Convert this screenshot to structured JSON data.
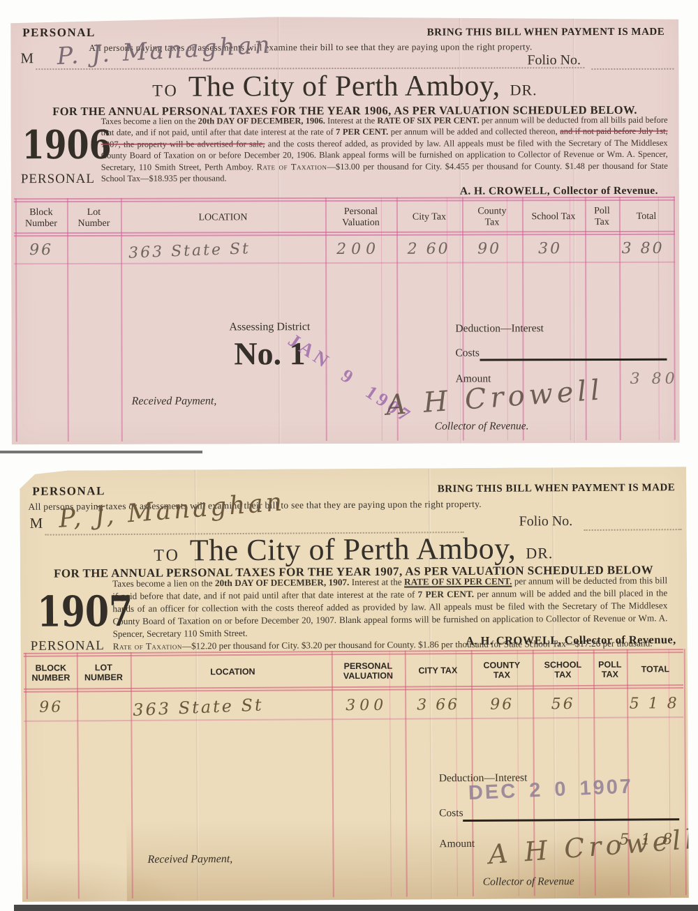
{
  "bill_1906": {
    "personal_label": "PERSONAL",
    "bring_notice": "BRING THIS BILL WHEN PAYMENT IS MADE",
    "examine_notice": "All persons paying taxes or assessments will examine their bill to see that they are paying upon the right property.",
    "m_label": "M",
    "written_name": "P. J. Managhan",
    "folio_label": "Folio No.",
    "title_to": "TO",
    "title_city": "The City of Perth Amboy,",
    "title_dr": "DR.",
    "subtitle": "FOR THE ANNUAL PERSONAL TAXES FOR THE YEAR 1906, AS PER VALUATION SCHEDULED BELOW.",
    "year": "1906",
    "year_label": "PERSONAL",
    "body_segments": [
      {
        "t": "Taxes become a lien on the ",
        "s": ""
      },
      {
        "t": "20th DAY OF DECEMBER, 1906.",
        "s": "b"
      },
      {
        "t": "  Interest at the ",
        "s": ""
      },
      {
        "t": "RATE OF SIX PER CENT.",
        "s": "b"
      },
      {
        "t": " per annum will be deducted from all bills paid before that date, and if not paid, until after that date interest at the rate of ",
        "s": ""
      },
      {
        "t": "7 PER CENT.",
        "s": "b"
      },
      {
        "t": " per annum will be added and collected thereon, ",
        "s": ""
      },
      {
        "t": "and if not paid before July 1st, 1907, the property will be advertised for sale,",
        "s": "x"
      },
      {
        "t": " and the costs thereof added, as provided by law.  All appeals must be filed with the Secretary of The Middlesex County Board of Taxation on or before December 20, 1906.  Blank appeal forms will be furnished on application to Collector of Revenue or Wm. A. Spencer, Secretary, 110 Smith Street, Perth Amboy.  ",
        "s": ""
      },
      {
        "t": "Rate of Taxation",
        "s": "sc"
      },
      {
        "t": "—$13.00 per thousand for City.  $4.455 per thousand for County.  $1.48 per thousand for State School Tax—$18.935 per thousand.",
        "s": ""
      }
    ],
    "collector_line": "A. H. CROWELL, Collector of Revenue.",
    "table": {
      "headers": [
        "Block\nNumber",
        "Lot\nNumber",
        "LOCATION",
        "Personal\nValuation",
        "City Tax",
        "County\nTax",
        "School Tax",
        "Poll\nTax",
        "Total"
      ],
      "row": {
        "block": "96",
        "lot": "",
        "location": "363  State St",
        "valuation": "200",
        "city_tax": "2 60",
        "county_tax": "90",
        "school_tax": "30",
        "poll_tax": "",
        "total": "3 80"
      }
    },
    "assessing_district_label": "Assessing District",
    "district_number": "No. 1",
    "stamp": "JAN 9 1907",
    "received_payment": "Received Payment,",
    "deduction_label": "Deduction—Interest",
    "costs_label": "Costs",
    "amount_label": "Amount",
    "amount_value": "3 80",
    "signature": "A H Crowell",
    "collector_sign_label": "Collector of Revenue."
  },
  "bill_1907": {
    "personal_label": "PERSONAL",
    "bring_notice": "BRING THIS BILL WHEN PAYMENT IS MADE",
    "examine_notice": "All persons paying taxes or assessments will examine their bill to see that they are paying upon the right property.",
    "m_label": "M",
    "written_name": "P, J, Managhan",
    "folio_label": "Folio No.",
    "title_to": "TO",
    "title_city": "The City of Perth Amboy,",
    "title_dr": "DR.",
    "subtitle": "FOR THE ANNUAL PERSONAL TAXES FOR THE YEAR 1907, AS PER VALUATION SCHEDULED BELOW",
    "year": "1907",
    "year_label": "PERSONAL",
    "body_segments": [
      {
        "t": "Taxes become a lien on the ",
        "s": ""
      },
      {
        "t": "20th DAY OF DECEMBER, 1907.",
        "s": "b"
      },
      {
        "t": "  Interest at the ",
        "s": ""
      },
      {
        "t": "RATE OF SIX PER CENT.",
        "s": "bu"
      },
      {
        "t": " per annum will be deducted from this bill if paid before that date, and if not paid until after that date interest at the rate of ",
        "s": ""
      },
      {
        "t": "7 PER CENT.",
        "s": "b"
      },
      {
        "t": " per annum will be added and the bill placed in the hands of an officer for collection with the costs thereof added as provided by law.  All appeals must be filed with the Secretary of The Middlesex County Board of Taxation on or before December 20, 1907.  Blank appeal forms will be furnished on application to Collector of Revenue or Wm. A. Spencer, Secretary 110 Smith Street.",
        "s": ""
      },
      {
        "t": "",
        "s": "nl"
      },
      {
        "t": "Rate of Taxation",
        "s": "sc"
      },
      {
        "t": "—$12.20 per thousand for City.  $3.20 per thousand for County.  $1.86 per thousand for State School Tax—$17.26 per thousand.",
        "s": ""
      }
    ],
    "collector_line": "A. H. CROWELL, Collector of Revenue,",
    "table": {
      "headers": [
        "BLOCK\nNUMBER",
        "LOT\nNUMBER",
        "LOCATION",
        "PERSONAL\nVALUATION",
        "CITY TAX",
        "COUNTY\nTAX",
        "SCHOOL\nTAX",
        "POLL\nTAX",
        "TOTAL"
      ],
      "row": {
        "block": "96",
        "lot": "",
        "location": "363  State St",
        "valuation": "300",
        "city_tax": "3 66",
        "county_tax": "96",
        "school_tax": "56",
        "poll_tax": "",
        "total": "5 1 8"
      }
    },
    "stamp": "DEC 2 0 1907",
    "received_payment": "Received Payment,",
    "deduction_label": "Deduction—Interest",
    "costs_label": "Costs",
    "amount_label": "Amount",
    "amount_value": "5 1 8",
    "signature": "A H Crowell",
    "collector_sign_label": "Collector of Revenue"
  }
}
